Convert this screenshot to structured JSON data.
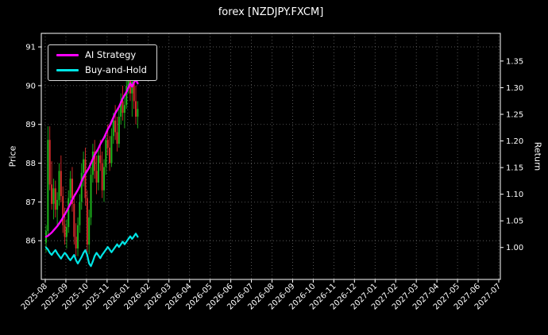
{
  "chart_data": {
    "type": "candlestick+line",
    "title": "forex [NZDJPY.FXCM]",
    "background": "#000000",
    "text_color": "#ffffff",
    "grid_color": "#666666",
    "grid": "dotted",
    "legend_position": "upper-left",
    "left_axis": {
      "label": "Price",
      "ticks": [
        86,
        87,
        88,
        89,
        90,
        91
      ],
      "range": [
        85.0,
        91.35
      ]
    },
    "right_axis": {
      "label": "Return",
      "ticks": [
        1.0,
        1.05,
        1.1,
        1.15,
        1.2,
        1.25,
        1.3,
        1.35
      ],
      "range": [
        0.94,
        1.402
      ]
    },
    "x_axis": {
      "tick_labels": [
        "2025-08",
        "2025-09",
        "2025-10",
        "2025-11",
        "2026-01",
        "2026-02",
        "2026-03",
        "2026-04",
        "2026-05",
        "2026-06",
        "2026-07",
        "2026-08",
        "2026-09",
        "2026-10",
        "2026-11",
        "2026-12",
        "2027-01",
        "2027-02",
        "2027-03",
        "2027-04",
        "2027-05",
        "2027-06",
        "2027-07"
      ]
    },
    "legend": [
      {
        "label": "AI Strategy",
        "color": "#ff00ff"
      },
      {
        "label": "Buy-and-Hold",
        "color": "#00e5e5"
      }
    ],
    "data_span_fraction": 0.21,
    "candles": {
      "up_color": "#1cb41c",
      "down_color": "#d62b2b",
      "ohlc": [
        [
          85.95,
          86.4,
          85.7,
          86.25
        ],
        [
          86.25,
          88.95,
          86.1,
          88.6
        ],
        [
          88.6,
          88.95,
          87.3,
          87.45
        ],
        [
          87.45,
          88.05,
          86.8,
          86.95
        ],
        [
          86.95,
          87.6,
          86.55,
          87.35
        ],
        [
          87.35,
          87.55,
          86.6,
          86.8
        ],
        [
          86.8,
          87.25,
          86.35,
          87.05
        ],
        [
          87.05,
          88.0,
          86.9,
          87.8
        ],
        [
          87.8,
          88.2,
          87.0,
          87.15
        ],
        [
          87.15,
          87.4,
          86.2,
          86.4
        ],
        [
          86.4,
          86.85,
          85.9,
          86.1
        ],
        [
          86.1,
          86.55,
          85.8,
          86.35
        ],
        [
          86.35,
          87.3,
          86.2,
          87.1
        ],
        [
          87.1,
          87.8,
          86.9,
          87.6
        ],
        [
          87.6,
          87.9,
          86.75,
          86.95
        ],
        [
          86.95,
          87.2,
          85.9,
          86.1
        ],
        [
          86.1,
          86.45,
          85.6,
          85.8
        ],
        [
          85.8,
          86.6,
          85.6,
          86.4
        ],
        [
          86.4,
          87.2,
          86.2,
          87.0
        ],
        [
          87.0,
          88.0,
          86.8,
          87.75
        ],
        [
          87.75,
          88.3,
          87.4,
          88.1
        ],
        [
          88.1,
          88.4,
          86.9,
          87.1
        ],
        [
          87.1,
          87.3,
          85.7,
          85.9
        ],
        [
          85.9,
          86.8,
          85.65,
          86.6
        ],
        [
          86.6,
          87.9,
          86.4,
          87.7
        ],
        [
          87.7,
          88.5,
          87.5,
          88.3
        ],
        [
          88.3,
          88.6,
          87.6,
          87.8
        ],
        [
          87.8,
          88.2,
          87.2,
          87.5
        ],
        [
          87.5,
          88.4,
          87.3,
          88.2
        ],
        [
          88.2,
          88.6,
          87.8,
          88.0
        ],
        [
          88.0,
          88.3,
          87.1,
          87.3
        ],
        [
          87.3,
          88.1,
          87.0,
          87.9
        ],
        [
          87.9,
          88.8,
          87.7,
          88.6
        ],
        [
          88.6,
          89.0,
          88.2,
          88.4
        ],
        [
          88.4,
          88.7,
          87.8,
          88.0
        ],
        [
          88.0,
          88.9,
          87.9,
          88.7
        ],
        [
          88.7,
          89.3,
          88.5,
          89.1
        ],
        [
          89.1,
          89.5,
          88.6,
          88.8
        ],
        [
          88.8,
          89.2,
          88.3,
          88.5
        ],
        [
          88.5,
          89.4,
          88.4,
          89.2
        ],
        [
          89.2,
          89.8,
          89.0,
          89.6
        ],
        [
          89.6,
          90.0,
          89.1,
          89.3
        ],
        [
          89.3,
          89.7,
          88.9,
          89.5
        ],
        [
          89.5,
          90.2,
          89.4,
          90.0
        ],
        [
          90.0,
          90.55,
          89.8,
          90.4
        ],
        [
          90.4,
          90.65,
          89.6,
          89.8
        ],
        [
          89.8,
          90.3,
          89.2,
          90.1
        ],
        [
          90.1,
          90.45,
          89.4,
          89.6
        ],
        [
          89.6,
          90.0,
          89.0,
          89.2
        ],
        [
          89.2,
          89.6,
          88.9,
          89.4
        ]
      ]
    },
    "series": [
      {
        "name": "AI Strategy",
        "axis": "right",
        "color": "#ff00ff",
        "width": 2.4,
        "values": [
          1.02,
          1.022,
          1.025,
          1.028,
          1.032,
          1.036,
          1.04,
          1.045,
          1.05,
          1.056,
          1.062,
          1.068,
          1.075,
          1.082,
          1.09,
          1.096,
          1.102,
          1.108,
          1.115,
          1.124,
          1.132,
          1.138,
          1.144,
          1.15,
          1.158,
          1.166,
          1.174,
          1.18,
          1.186,
          1.194,
          1.2,
          1.206,
          1.214,
          1.222,
          1.228,
          1.236,
          1.244,
          1.252,
          1.258,
          1.264,
          1.272,
          1.28,
          1.286,
          1.292,
          1.3,
          1.308,
          1.302,
          1.31,
          1.315,
          1.308
        ]
      },
      {
        "name": "Buy-and-Hold",
        "axis": "right",
        "color": "#00e5e5",
        "width": 2.2,
        "values": [
          1.0,
          0.996,
          0.99,
          0.986,
          0.991,
          0.995,
          0.989,
          0.984,
          0.979,
          0.985,
          0.99,
          0.986,
          0.98,
          0.976,
          0.981,
          0.986,
          0.976,
          0.97,
          0.976,
          0.982,
          0.99,
          0.995,
          0.986,
          0.97,
          0.965,
          0.974,
          0.984,
          0.99,
          0.985,
          0.98,
          0.986,
          0.991,
          0.996,
          1.001,
          0.996,
          0.991,
          0.996,
          1.001,
          1.006,
          1.001,
          1.006,
          1.011,
          1.006,
          1.011,
          1.016,
          1.021,
          1.016,
          1.021,
          1.026,
          1.02
        ]
      }
    ]
  }
}
